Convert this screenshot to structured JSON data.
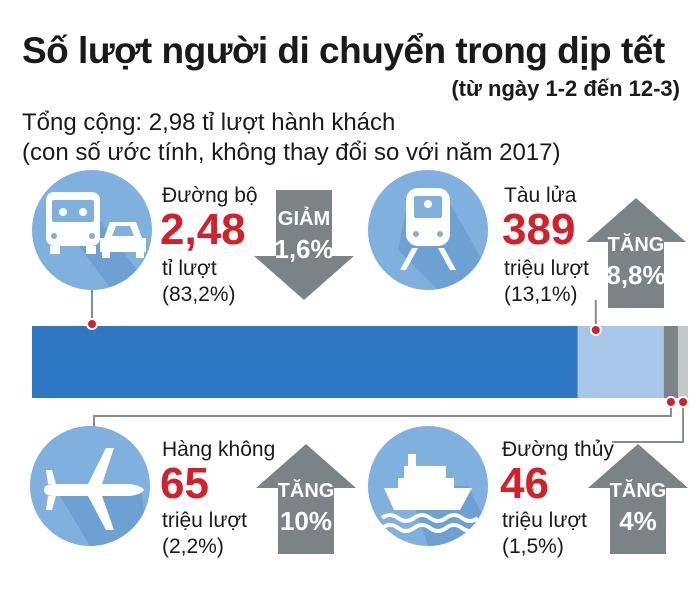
{
  "title": "Số lượt người di chuyển trong dịp tết",
  "subtitle": "(từ ngày 1-2 đến 12-3)",
  "summary": {
    "line1": "Tổng cộng: 2,98 tỉ lượt hành khách",
    "line2": "(con số ước tính, không thay đổi so với năm 2017)"
  },
  "items": {
    "road": {
      "category": "Đường bộ",
      "value": "2,48",
      "unit": "tỉ lượt",
      "share": "(83,2%)",
      "change_label": "GIẢM",
      "change_value": "1,6%"
    },
    "rail": {
      "category": "Tàu lửa",
      "value": "389",
      "unit": "triệu lượt",
      "share": "(13,1%)",
      "change_label": "TĂNG",
      "change_value": "8,8%"
    },
    "air": {
      "category": "Hàng không",
      "value": "65",
      "unit": "triệu lượt",
      "share": "(2,2%)",
      "change_label": "TĂNG",
      "change_value": "10%"
    },
    "water": {
      "category": "Đường thủy",
      "value": "46",
      "unit": "triệu lượt",
      "share": "(1,5%)",
      "change_label": "TĂNG",
      "change_value": "4%"
    }
  },
  "colors": {
    "road": "#2e77c2",
    "rail": "#a8c6e8",
    "air": "#7c8387",
    "water": "#c4c9cc",
    "highlight": "#d51f2a",
    "icon_circle": "#7fb0de",
    "arrow": "#7c8387"
  },
  "chart_data": {
    "type": "bar",
    "orientation": "horizontal-stacked",
    "title": "Số lượt người di chuyển trong dịp tết",
    "categories": [
      "Đường bộ",
      "Tàu lửa",
      "Hàng không",
      "Đường thủy"
    ],
    "values": [
      83.2,
      13.1,
      2.2,
      1.5
    ],
    "unit": "%",
    "absolute_values": [
      "2,48 tỉ lượt",
      "389 triệu lượt",
      "65 triệu lượt",
      "46 triệu lượt"
    ],
    "changes": [
      "GIẢM 1,6%",
      "TĂNG 8,8%",
      "TĂNG 10%",
      "TĂNG 4%"
    ],
    "ylim": [
      0,
      100
    ]
  }
}
